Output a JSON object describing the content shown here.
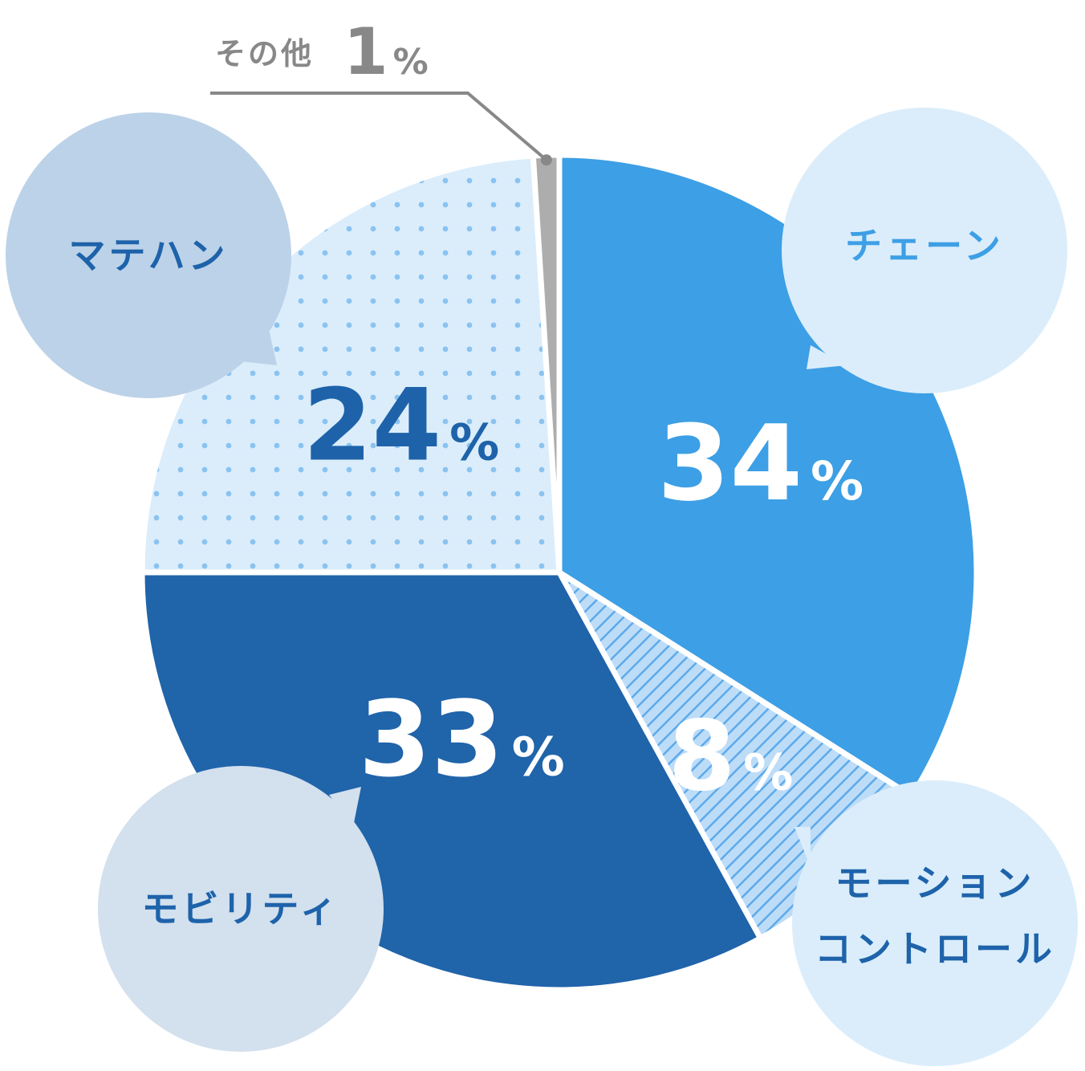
{
  "chart_data": {
    "type": "pie",
    "unit": "%",
    "slices": [
      {
        "name": "チェーン",
        "value": 34,
        "color": "#3d9fe5",
        "pattern": "solid",
        "label_color": "#ffffff",
        "bubble_color": "#dbedfb",
        "bubble_text_color": "#3d9fe5"
      },
      {
        "name": "モーションコントロール",
        "name_lines": [
          "モーション",
          "コントロール"
        ],
        "value": 8,
        "color": "#bcdcf8",
        "pattern": "stripes",
        "stripe_color": "#5aa8ea",
        "label_color": "#ffffff",
        "bubble_color": "#dbedfb",
        "bubble_text_color": "#1e63aa"
      },
      {
        "name": "モビリティ",
        "value": 33,
        "color": "#2064aa",
        "pattern": "solid",
        "label_color": "#ffffff",
        "bubble_color": "#d3e0ee",
        "bubble_text_color": "#1e63aa"
      },
      {
        "name": "マテハン",
        "value": 24,
        "color": "#dbedfb",
        "pattern": "dots",
        "dot_color": "#8ac3f0",
        "label_color": "#1e63aa",
        "bubble_color": "#bcd2e8",
        "bubble_text_color": "#1e63aa"
      },
      {
        "name": "その他",
        "value": 1,
        "color": "#adadad",
        "pattern": "solid",
        "label_color": "#888888"
      }
    ]
  }
}
